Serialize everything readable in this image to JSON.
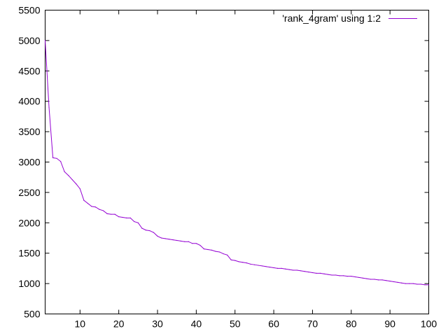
{
  "chart_data": {
    "type": "line",
    "title": "",
    "xlabel": "",
    "ylabel": "",
    "xlim": [
      1,
      100
    ],
    "ylim": [
      500,
      5500
    ],
    "xticks": [
      10,
      20,
      30,
      40,
      50,
      60,
      70,
      80,
      90,
      100
    ],
    "yticks": [
      500,
      1000,
      1500,
      2000,
      2500,
      3000,
      3500,
      4000,
      4500,
      5000,
      5500
    ],
    "grid": false,
    "legend": {
      "position": "top-right",
      "entries": [
        "'rank_4gram' using 1:2"
      ]
    },
    "series": [
      {
        "name": "'rank_4gram' using 1:2",
        "color": "#9400d3",
        "x": [
          1,
          2,
          3,
          4,
          5,
          6,
          7,
          8,
          9,
          10,
          11,
          12,
          13,
          14,
          15,
          16,
          17,
          18,
          19,
          20,
          21,
          22,
          23,
          24,
          25,
          26,
          27,
          28,
          29,
          30,
          31,
          32,
          33,
          34,
          35,
          36,
          37,
          38,
          39,
          40,
          41,
          42,
          43,
          44,
          45,
          46,
          47,
          48,
          49,
          50,
          51,
          52,
          53,
          54,
          55,
          56,
          57,
          58,
          59,
          60,
          61,
          62,
          63,
          64,
          65,
          66,
          67,
          68,
          69,
          70,
          71,
          72,
          73,
          74,
          75,
          76,
          77,
          78,
          79,
          80,
          81,
          82,
          83,
          84,
          85,
          86,
          87,
          88,
          89,
          90,
          91,
          92,
          93,
          94,
          95,
          96,
          97,
          98,
          99,
          100
        ],
        "values": [
          5000,
          3900,
          3070,
          3060,
          3010,
          2840,
          2780,
          2710,
          2640,
          2560,
          2370,
          2320,
          2270,
          2260,
          2220,
          2200,
          2150,
          2140,
          2140,
          2100,
          2090,
          2080,
          2080,
          2020,
          2000,
          1910,
          1880,
          1870,
          1840,
          1780,
          1750,
          1740,
          1730,
          1720,
          1710,
          1700,
          1690,
          1690,
          1660,
          1660,
          1630,
          1570,
          1560,
          1550,
          1530,
          1520,
          1490,
          1470,
          1390,
          1380,
          1360,
          1350,
          1340,
          1320,
          1310,
          1300,
          1290,
          1280,
          1270,
          1260,
          1250,
          1250,
          1240,
          1230,
          1220,
          1220,
          1210,
          1200,
          1190,
          1180,
          1170,
          1170,
          1160,
          1150,
          1140,
          1140,
          1130,
          1130,
          1120,
          1120,
          1110,
          1100,
          1090,
          1080,
          1070,
          1070,
          1060,
          1060,
          1050,
          1040,
          1030,
          1020,
          1010,
          1000,
          1000,
          1000,
          990,
          990,
          980,
          980
        ]
      }
    ]
  }
}
